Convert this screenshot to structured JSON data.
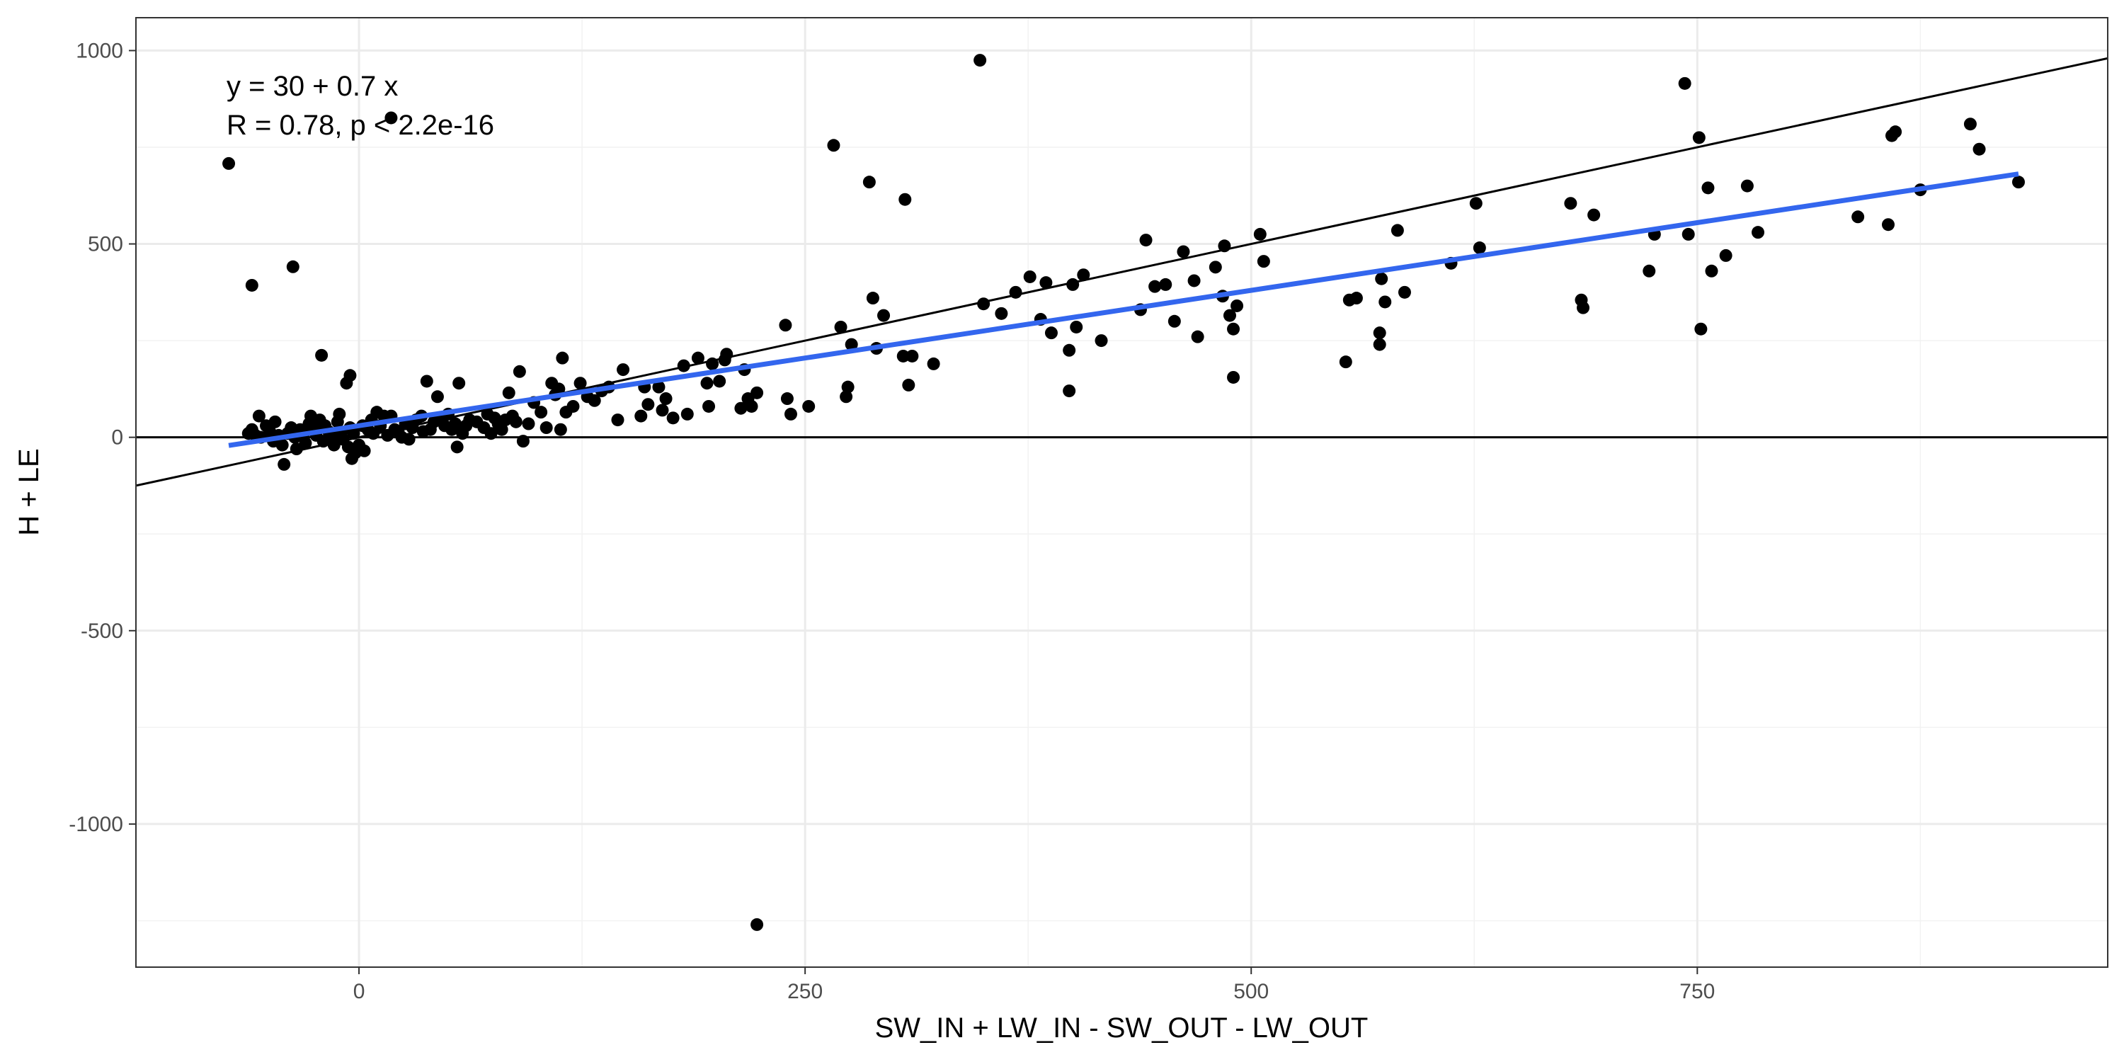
{
  "chart_data": {
    "type": "scatter",
    "title": "",
    "xlabel": "SW_IN + LW_IN - SW_OUT - LW_OUT",
    "ylabel": "H + LE",
    "xlim": [
      -125,
      980
    ],
    "ylim": [
      -1370,
      1085
    ],
    "x_ticks": [
      0,
      250,
      500,
      750
    ],
    "x_tick_labels": [
      "0",
      "250",
      "500",
      "750"
    ],
    "y_ticks": [
      -1000,
      -500,
      0,
      500,
      1000
    ],
    "y_tick_labels": [
      "-1000",
      "-500",
      "0",
      "500",
      "1000"
    ],
    "grid": true,
    "legend": "none",
    "annotation": {
      "line1": "y = 30 + 0.7 x",
      "line2": "R = 0.78, p < 2.2e-16"
    },
    "reference_lines": [
      {
        "kind": "identity",
        "slope": 1,
        "intercept": 0,
        "color": "#000000"
      },
      {
        "kind": "horizontal",
        "y": 0,
        "color": "#000000"
      }
    ],
    "fit_line": {
      "x_start": -73,
      "x_end": 930,
      "intercept": 30,
      "slope": 0.7,
      "color": "#3366EE"
    },
    "point_color": "#000000",
    "points": [
      [
        -73,
        708
      ],
      [
        -60,
        393
      ],
      [
        -37,
        441
      ],
      [
        -21,
        212
      ],
      [
        -5,
        160
      ],
      [
        -7,
        140
      ],
      [
        18,
        826
      ],
      [
        -62,
        10
      ],
      [
        -60,
        20
      ],
      [
        -58,
        5
      ],
      [
        -55,
        0
      ],
      [
        -56,
        55
      ],
      [
        -52,
        30
      ],
      [
        -50,
        15
      ],
      [
        -48,
        -10
      ],
      [
        -47,
        40
      ],
      [
        -45,
        5
      ],
      [
        -43,
        -20
      ],
      [
        -42,
        -70
      ],
      [
        -40,
        10
      ],
      [
        -38,
        25
      ],
      [
        -36,
        0
      ],
      [
        -35,
        -30
      ],
      [
        -33,
        20
      ],
      [
        -31,
        10
      ],
      [
        -30,
        -15
      ],
      [
        -28,
        35
      ],
      [
        -27,
        55
      ],
      [
        -25,
        20
      ],
      [
        -24,
        5
      ],
      [
        -22,
        45
      ],
      [
        -20,
        -10
      ],
      [
        -19,
        30
      ],
      [
        -17,
        15
      ],
      [
        -15,
        0
      ],
      [
        -14,
        -20
      ],
      [
        -12,
        40
      ],
      [
        -10,
        10
      ],
      [
        -9,
        -5
      ],
      [
        -11,
        60
      ],
      [
        -6,
        -25
      ],
      [
        -5,
        25
      ],
      [
        -3,
        10
      ],
      [
        -4,
        -55
      ],
      [
        -2,
        -40
      ],
      [
        0,
        -20
      ],
      [
        2,
        30
      ],
      [
        3,
        -35
      ],
      [
        5,
        20
      ],
      [
        7,
        45
      ],
      [
        8,
        10
      ],
      [
        10,
        65
      ],
      [
        12,
        30
      ],
      [
        14,
        55
      ],
      [
        16,
        5
      ],
      [
        18,
        55
      ],
      [
        20,
        20
      ],
      [
        22,
        15
      ],
      [
        24,
        0
      ],
      [
        26,
        35
      ],
      [
        28,
        -5
      ],
      [
        30,
        25
      ],
      [
        32,
        45
      ],
      [
        35,
        55
      ],
      [
        36,
        15
      ],
      [
        38,
        145
      ],
      [
        40,
        20
      ],
      [
        42,
        40
      ],
      [
        44,
        105
      ],
      [
        46,
        50
      ],
      [
        48,
        30
      ],
      [
        50,
        60
      ],
      [
        52,
        20
      ],
      [
        54,
        35
      ],
      [
        55,
        -25
      ],
      [
        56,
        140
      ],
      [
        58,
        10
      ],
      [
        60,
        30
      ],
      [
        62,
        45
      ],
      [
        66,
        40
      ],
      [
        70,
        25
      ],
      [
        72,
        60
      ],
      [
        74,
        10
      ],
      [
        76,
        50
      ],
      [
        78,
        35
      ],
      [
        80,
        20
      ],
      [
        82,
        45
      ],
      [
        84,
        115
      ],
      [
        86,
        55
      ],
      [
        88,
        40
      ],
      [
        90,
        170
      ],
      [
        92,
        -10
      ],
      [
        95,
        35
      ],
      [
        98,
        90
      ],
      [
        102,
        65
      ],
      [
        105,
        25
      ],
      [
        108,
        140
      ],
      [
        110,
        110
      ],
      [
        112,
        125
      ],
      [
        113,
        20
      ],
      [
        114,
        205
      ],
      [
        116,
        65
      ],
      [
        120,
        80
      ],
      [
        124,
        140
      ],
      [
        128,
        105
      ],
      [
        132,
        95
      ],
      [
        136,
        120
      ],
      [
        140,
        130
      ],
      [
        145,
        45
      ],
      [
        148,
        175
      ],
      [
        158,
        55
      ],
      [
        160,
        130
      ],
      [
        162,
        85
      ],
      [
        168,
        130
      ],
      [
        170,
        70
      ],
      [
        172,
        100
      ],
      [
        176,
        50
      ],
      [
        182,
        185
      ],
      [
        184,
        60
      ],
      [
        190,
        205
      ],
      [
        195,
        140
      ],
      [
        196,
        80
      ],
      [
        198,
        190
      ],
      [
        202,
        145
      ],
      [
        205,
        200
      ],
      [
        206,
        215
      ],
      [
        214,
        75
      ],
      [
        216,
        175
      ],
      [
        218,
        100
      ],
      [
        220,
        80
      ],
      [
        223,
        115
      ],
      [
        223,
        -1260
      ],
      [
        239,
        290
      ],
      [
        240,
        100
      ],
      [
        242,
        60
      ],
      [
        252,
        80
      ],
      [
        266,
        755
      ],
      [
        270,
        285
      ],
      [
        273,
        105
      ],
      [
        274,
        130
      ],
      [
        276,
        240
      ],
      [
        286,
        660
      ],
      [
        288,
        360
      ],
      [
        290,
        230
      ],
      [
        294,
        315
      ],
      [
        305,
        210
      ],
      [
        306,
        615
      ],
      [
        308,
        135
      ],
      [
        310,
        210
      ],
      [
        322,
        190
      ],
      [
        348,
        975
      ],
      [
        350,
        345
      ],
      [
        360,
        320
      ],
      [
        368,
        375
      ],
      [
        376,
        415
      ],
      [
        382,
        305
      ],
      [
        385,
        400
      ],
      [
        388,
        270
      ],
      [
        398,
        120
      ],
      [
        398,
        225
      ],
      [
        400,
        395
      ],
      [
        402,
        285
      ],
      [
        406,
        420
      ],
      [
        416,
        250
      ],
      [
        438,
        330
      ],
      [
        441,
        510
      ],
      [
        446,
        390
      ],
      [
        452,
        395
      ],
      [
        457,
        300
      ],
      [
        462,
        480
      ],
      [
        468,
        405
      ],
      [
        470,
        260
      ],
      [
        480,
        440
      ],
      [
        484,
        365
      ],
      [
        485,
        495
      ],
      [
        488,
        315
      ],
      [
        490,
        155
      ],
      [
        490,
        280
      ],
      [
        492,
        340
      ],
      [
        505,
        525
      ],
      [
        507,
        455
      ],
      [
        553,
        195
      ],
      [
        555,
        355
      ],
      [
        559,
        360
      ],
      [
        572,
        240
      ],
      [
        572,
        270
      ],
      [
        573,
        410
      ],
      [
        575,
        350
      ],
      [
        582,
        535
      ],
      [
        586,
        375
      ],
      [
        612,
        450
      ],
      [
        626,
        605
      ],
      [
        628,
        490
      ],
      [
        679,
        605
      ],
      [
        685,
        355
      ],
      [
        686,
        335
      ],
      [
        692,
        575
      ],
      [
        723,
        430
      ],
      [
        726,
        525
      ],
      [
        743,
        915
      ],
      [
        745,
        525
      ],
      [
        751,
        775
      ],
      [
        752,
        280
      ],
      [
        756,
        645
      ],
      [
        758,
        430
      ],
      [
        766,
        470
      ],
      [
        778,
        650
      ],
      [
        784,
        530
      ],
      [
        840,
        570
      ],
      [
        857,
        550
      ],
      [
        859,
        780
      ],
      [
        861,
        790
      ],
      [
        875,
        640
      ],
      [
        903,
        810
      ],
      [
        908,
        745
      ],
      [
        930,
        660
      ]
    ]
  }
}
